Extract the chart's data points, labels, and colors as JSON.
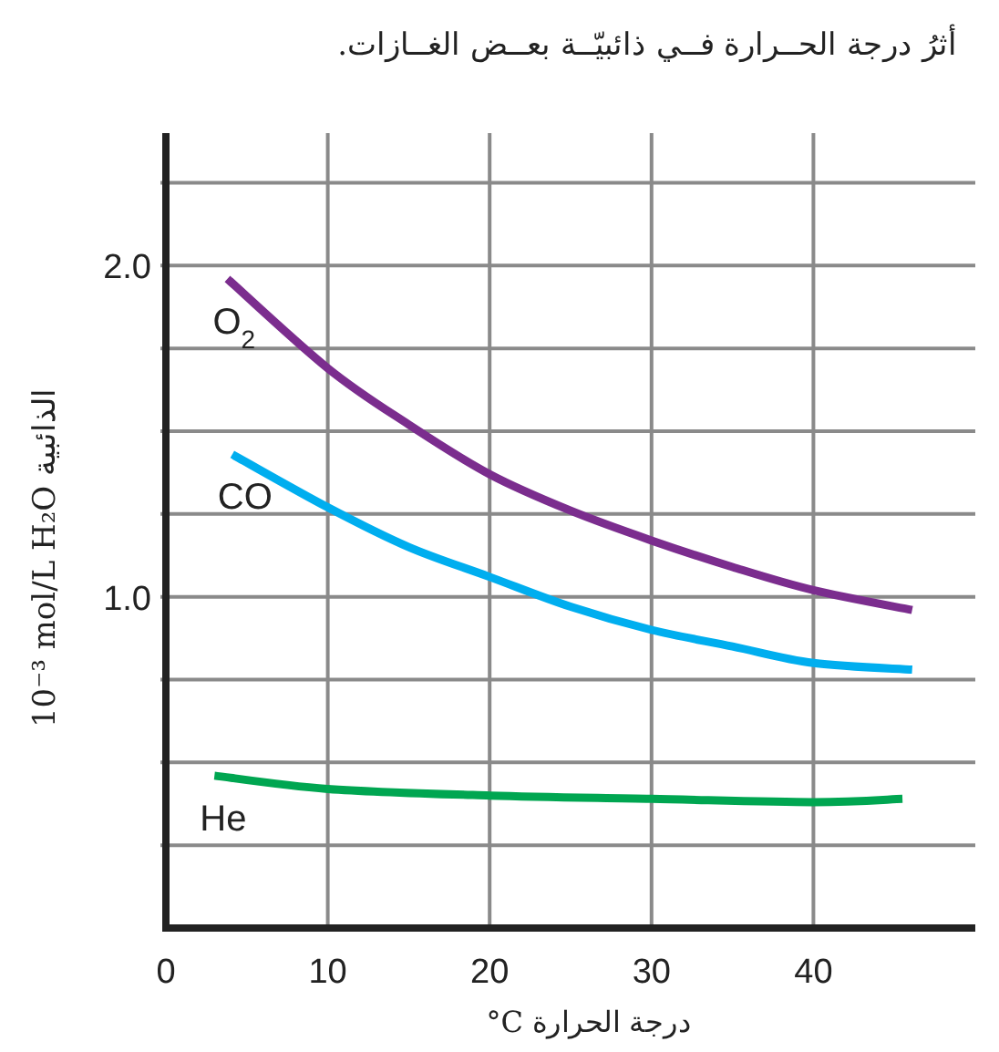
{
  "chart_data": {
    "type": "line",
    "title": "أثرُ درجة  الحــرارة فــي ذائبيّــة بعــض الغــازات.",
    "xlabel": "°C درجة الحرارة",
    "ylabel": "10⁻³ mol/L H₂O الذائبية",
    "xlim": [
      0,
      50
    ],
    "ylim": [
      0,
      2.4
    ],
    "xticks": [
      0,
      10,
      20,
      30,
      40
    ],
    "yticks": [
      {
        "value": 0.25,
        "label": null
      },
      {
        "value": 0.5,
        "label": null
      },
      {
        "value": 0.75,
        "label": null
      },
      {
        "value": 1.0,
        "label": "1.0"
      },
      {
        "value": 1.25,
        "label": null
      },
      {
        "value": 1.5,
        "label": null
      },
      {
        "value": 1.75,
        "label": null
      },
      {
        "value": 2.0,
        "label": "2.0"
      },
      {
        "value": 2.25,
        "label": null
      }
    ],
    "grid": true,
    "series": [
      {
        "name": "O$_{2}$",
        "color": "#7b2d8e",
        "x": [
          3.8,
          10,
          15,
          20,
          25,
          30,
          35,
          40,
          46.1
        ],
        "values": [
          1.96,
          1.69,
          1.52,
          1.37,
          1.26,
          1.17,
          1.09,
          1.02,
          0.96
        ]
      },
      {
        "name": "CO",
        "color": "#00aeef",
        "x": [
          4.1,
          10,
          15,
          20,
          25,
          30,
          35,
          40,
          46.1
        ],
        "values": [
          1.43,
          1.27,
          1.15,
          1.06,
          0.97,
          0.9,
          0.85,
          0.8,
          0.78
        ]
      },
      {
        "name": "He",
        "color": "#00a651",
        "x": [
          3,
          10,
          20,
          30,
          40,
          45.5
        ],
        "values": [
          0.46,
          0.42,
          0.4,
          0.39,
          0.38,
          0.39
        ]
      }
    ]
  }
}
